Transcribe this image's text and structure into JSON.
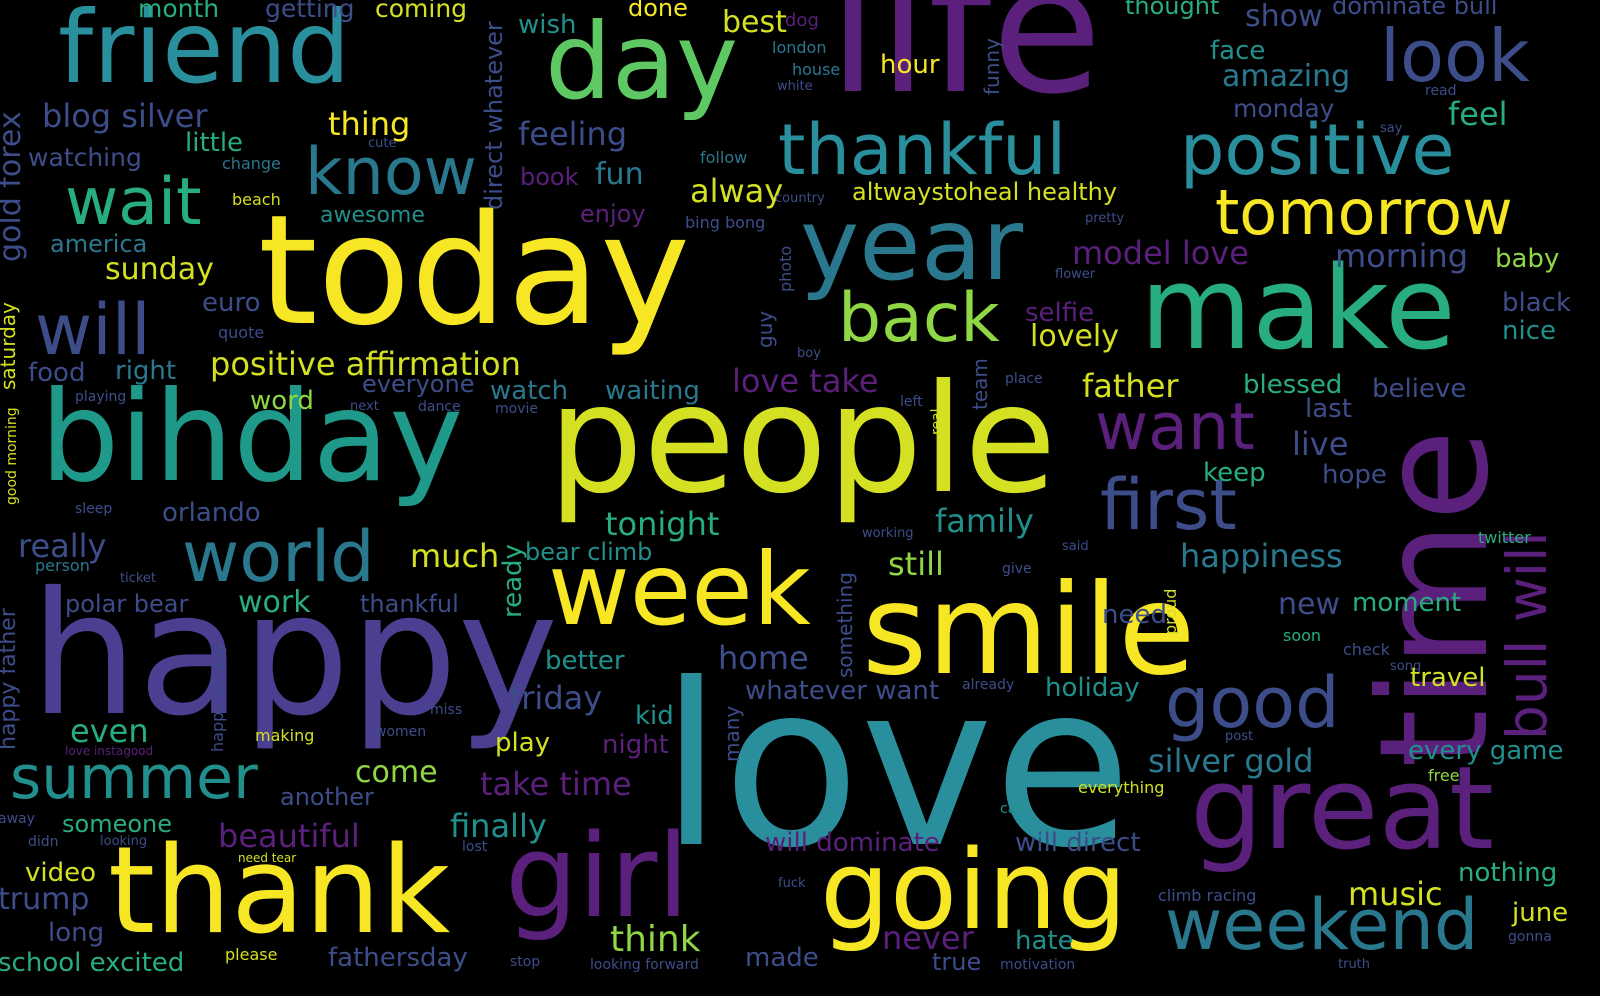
{
  "words": [
    {
      "t": "love",
      "c": "#2a8f9c"
    },
    {
      "t": "people",
      "c": "#d4e022"
    },
    {
      "t": "today",
      "c": "#f6e624"
    },
    {
      "t": "happy",
      "c": "#4a3f90"
    },
    {
      "t": "life",
      "c": "#5b1f7c"
    },
    {
      "t": "time",
      "c": "#5b1f7c"
    },
    {
      "t": "smile",
      "c": "#f6e624"
    },
    {
      "t": "bihday",
      "c": "#1f9a8a"
    },
    {
      "t": "make",
      "c": "#27ad81"
    },
    {
      "t": "thank",
      "c": "#f6e624"
    },
    {
      "t": "week",
      "c": "#f6e624"
    },
    {
      "t": "going",
      "c": "#f6e624"
    },
    {
      "t": "girl",
      "c": "#5b1f7c"
    },
    {
      "t": "great",
      "c": "#5b1f7c"
    },
    {
      "t": "day",
      "c": "#5ec962"
    },
    {
      "t": "friend",
      "c": "#2a8f9c"
    },
    {
      "t": "year",
      "c": "#2a788e"
    },
    {
      "t": "thankful",
      "c": "#2a8f9c"
    },
    {
      "t": "positive",
      "c": "#2a8f9c"
    },
    {
      "t": "world",
      "c": "#2a788e"
    },
    {
      "t": "good",
      "c": "#3d4d8a"
    },
    {
      "t": "weekend",
      "c": "#2a788e"
    },
    {
      "t": "first",
      "c": "#3d4d8a"
    },
    {
      "t": "tomorrow",
      "c": "#f6e624"
    },
    {
      "t": "look",
      "c": "#3d4d8a"
    },
    {
      "t": "summer",
      "c": "#21908d"
    },
    {
      "t": "know",
      "c": "#2a788e"
    },
    {
      "t": "wait",
      "c": "#27ad81"
    },
    {
      "t": "will",
      "c": "#3d4d8a"
    },
    {
      "t": "back",
      "c": "#8fd744"
    },
    {
      "t": "want",
      "c": "#5b1f7c"
    },
    {
      "t": "bull will",
      "c": "#5b1f7c"
    },
    {
      "t": "positive affirmation",
      "c": "#d4e022"
    },
    {
      "t": "blog silver",
      "c": "#3d4d8a"
    },
    {
      "t": "gold forex",
      "c": "#3d4d8a"
    },
    {
      "t": "month",
      "c": "#27ad81"
    },
    {
      "t": "getting",
      "c": "#3d4d8a"
    },
    {
      "t": "coming",
      "c": "#d4e022"
    },
    {
      "t": "done",
      "c": "#f6e624"
    },
    {
      "t": "best",
      "c": "#d4e022"
    },
    {
      "t": "dog",
      "c": "#5b1f7c"
    },
    {
      "t": "london",
      "c": "#2a788e"
    },
    {
      "t": "house",
      "c": "#2a788e"
    },
    {
      "t": "white",
      "c": "#3d4d8a"
    },
    {
      "t": "hour",
      "c": "#f6e624"
    },
    {
      "t": "funny",
      "c": "#3d4d8a"
    },
    {
      "t": "thought",
      "c": "#27ad81"
    },
    {
      "t": "show",
      "c": "#3d4d8a"
    },
    {
      "t": "dominate bull",
      "c": "#3d4d8a"
    },
    {
      "t": "face",
      "c": "#21908d"
    },
    {
      "t": "amazing",
      "c": "#2a788e"
    },
    {
      "t": "monday",
      "c": "#3d4d8a"
    },
    {
      "t": "read",
      "c": "#3d4d8a"
    },
    {
      "t": "feel",
      "c": "#27ad81"
    },
    {
      "t": "say",
      "c": "#3d4d8a"
    },
    {
      "t": "wish",
      "c": "#21908d"
    },
    {
      "t": "direct whatever",
      "c": "#3d4d8a"
    },
    {
      "t": "thing",
      "c": "#f6e624"
    },
    {
      "t": "little",
      "c": "#27ad81"
    },
    {
      "t": "cute",
      "c": "#3d4d8a"
    },
    {
      "t": "change",
      "c": "#2a788e"
    },
    {
      "t": "watching",
      "c": "#3d4d8a"
    },
    {
      "t": "feeling",
      "c": "#3d4d8a"
    },
    {
      "t": "follow",
      "c": "#2a788e"
    },
    {
      "t": "book",
      "c": "#5b1f7c"
    },
    {
      "t": "fun",
      "c": "#2a788e"
    },
    {
      "t": "alway",
      "c": "#d4e022"
    },
    {
      "t": "country",
      "c": "#3d4d8a"
    },
    {
      "t": "altwaystoheal healthy",
      "c": "#d4e022"
    },
    {
      "t": "beach",
      "c": "#d4e022"
    },
    {
      "t": "awesome",
      "c": "#21908d"
    },
    {
      "t": "enjoy",
      "c": "#5b1f7c"
    },
    {
      "t": "bing bong",
      "c": "#3d4d8a"
    },
    {
      "t": "pretty",
      "c": "#3d4d8a"
    },
    {
      "t": "america",
      "c": "#2a788e"
    },
    {
      "t": "sunday",
      "c": "#d4e022"
    },
    {
      "t": "photo",
      "c": "#3d4d8a"
    },
    {
      "t": "model love",
      "c": "#5b1f7c"
    },
    {
      "t": "morning",
      "c": "#3d4d8a"
    },
    {
      "t": "baby",
      "c": "#8fd744"
    },
    {
      "t": "flower",
      "c": "#3d4d8a"
    },
    {
      "t": "euro",
      "c": "#3d4d8a"
    },
    {
      "t": "black",
      "c": "#3d4d8a"
    },
    {
      "t": "nice",
      "c": "#21908d"
    },
    {
      "t": "selfie",
      "c": "#5b1f7c"
    },
    {
      "t": "lovely",
      "c": "#d4e022"
    },
    {
      "t": "quote",
      "c": "#3d4d8a"
    },
    {
      "t": "guy",
      "c": "#3d4d8a"
    },
    {
      "t": "boy",
      "c": "#3d4d8a"
    },
    {
      "t": "saturday",
      "c": "#d4e022"
    },
    {
      "t": "food",
      "c": "#3d4d8a"
    },
    {
      "t": "right",
      "c": "#2a788e"
    },
    {
      "t": "everyone",
      "c": "#3d4d8a"
    },
    {
      "t": "watch",
      "c": "#2a788e"
    },
    {
      "t": "waiting",
      "c": "#2a788e"
    },
    {
      "t": "love take",
      "c": "#5b1f7c"
    },
    {
      "t": "team",
      "c": "#3d4d8a"
    },
    {
      "t": "place",
      "c": "#3d4d8a"
    },
    {
      "t": "father",
      "c": "#d4e022"
    },
    {
      "t": "blessed",
      "c": "#27ad81"
    },
    {
      "t": "believe",
      "c": "#3d4d8a"
    },
    {
      "t": "playing",
      "c": "#3d4d8a"
    },
    {
      "t": "word",
      "c": "#8fd744"
    },
    {
      "t": "next",
      "c": "#3d4d8a"
    },
    {
      "t": "dance",
      "c": "#3d4d8a"
    },
    {
      "t": "movie",
      "c": "#3d4d8a"
    },
    {
      "t": "left",
      "c": "#3d4d8a"
    },
    {
      "t": "real",
      "c": "#d4e022"
    },
    {
      "t": "last",
      "c": "#3d4d8a"
    },
    {
      "t": "good morning",
      "c": "#d4e022"
    },
    {
      "t": "live",
      "c": "#3d4d8a"
    },
    {
      "t": "keep",
      "c": "#27ad81"
    },
    {
      "t": "hope",
      "c": "#3d4d8a"
    },
    {
      "t": "sleep",
      "c": "#3d4d8a"
    },
    {
      "t": "orlando",
      "c": "#3d4d8a"
    },
    {
      "t": "ready",
      "c": "#27ad81"
    },
    {
      "t": "tonight",
      "c": "#27ad81"
    },
    {
      "t": "family",
      "c": "#21908d"
    },
    {
      "t": "working",
      "c": "#3d4d8a"
    },
    {
      "t": "said",
      "c": "#3d4d8a"
    },
    {
      "t": "twitter",
      "c": "#27ad81"
    },
    {
      "t": "really",
      "c": "#3d4d8a"
    },
    {
      "t": "much",
      "c": "#d4e022"
    },
    {
      "t": "bear climb",
      "c": "#21908d"
    },
    {
      "t": "something",
      "c": "#3d4d8a"
    },
    {
      "t": "still",
      "c": "#8fd744"
    },
    {
      "t": "happiness",
      "c": "#2a788e"
    },
    {
      "t": "person",
      "c": "#2a788e"
    },
    {
      "t": "ticket",
      "c": "#3d4d8a"
    },
    {
      "t": "give",
      "c": "#3d4d8a"
    },
    {
      "t": "happy father",
      "c": "#3d4d8a"
    },
    {
      "t": "polar bear",
      "c": "#3d4d8a"
    },
    {
      "t": "work",
      "c": "#27ad81"
    },
    {
      "t": "thankful",
      "c": "#3d4d8a"
    },
    {
      "t": "need",
      "c": "#3d4d8a"
    },
    {
      "t": "proud",
      "c": "#d4e022"
    },
    {
      "t": "new",
      "c": "#3d4d8a"
    },
    {
      "t": "moment",
      "c": "#27ad81"
    },
    {
      "t": "soon",
      "c": "#27ad81"
    },
    {
      "t": "check",
      "c": "#3d4d8a"
    },
    {
      "t": "song",
      "c": "#3d4d8a"
    },
    {
      "t": "happy bihday",
      "c": "#3d4d8a"
    },
    {
      "t": "better",
      "c": "#21908d"
    },
    {
      "t": "home",
      "c": "#3d4d8a"
    },
    {
      "t": "friday",
      "c": "#3d4d8a"
    },
    {
      "t": "whatever want",
      "c": "#3d4d8a"
    },
    {
      "t": "already",
      "c": "#3d4d8a"
    },
    {
      "t": "holiday",
      "c": "#21908d"
    },
    {
      "t": "travel",
      "c": "#d4e022"
    },
    {
      "t": "kid",
      "c": "#21908d"
    },
    {
      "t": "many",
      "c": "#3d4d8a"
    },
    {
      "t": "miss",
      "c": "#3d4d8a"
    },
    {
      "t": "women",
      "c": "#3d4d8a"
    },
    {
      "t": "even",
      "c": "#27ad81"
    },
    {
      "t": "making",
      "c": "#d4e022"
    },
    {
      "t": "play",
      "c": "#d4e022"
    },
    {
      "t": "night",
      "c": "#5b1f7c"
    },
    {
      "t": "post",
      "c": "#3d4d8a"
    },
    {
      "t": "every game",
      "c": "#21908d"
    },
    {
      "t": "love instagood",
      "c": "#5b1f7c"
    },
    {
      "t": "come",
      "c": "#8fd744"
    },
    {
      "t": "take time",
      "c": "#5b1f7c"
    },
    {
      "t": "silver gold",
      "c": "#2a788e"
    },
    {
      "t": "free",
      "c": "#8fd744"
    },
    {
      "t": "another",
      "c": "#3d4d8a"
    },
    {
      "t": "everything",
      "c": "#d4e022"
    },
    {
      "t": "away",
      "c": "#3d4d8a"
    },
    {
      "t": "someone",
      "c": "#27ad81"
    },
    {
      "t": "call",
      "c": "#21908d"
    },
    {
      "t": "beautiful",
      "c": "#5b1f7c"
    },
    {
      "t": "finally",
      "c": "#21908d"
    },
    {
      "t": "will dominate",
      "c": "#5b1f7c"
    },
    {
      "t": "will direct",
      "c": "#3d4d8a"
    },
    {
      "t": "didn",
      "c": "#3d4d8a"
    },
    {
      "t": "looking",
      "c": "#3d4d8a"
    },
    {
      "t": "lost",
      "c": "#3d4d8a"
    },
    {
      "t": "need tear",
      "c": "#d4e022"
    },
    {
      "t": "video",
      "c": "#d4e022"
    },
    {
      "t": "fuck",
      "c": "#3d4d8a"
    },
    {
      "t": "nothing",
      "c": "#27ad81"
    },
    {
      "t": "trump",
      "c": "#3d4d8a"
    },
    {
      "t": "music",
      "c": "#d4e022"
    },
    {
      "t": "climb racing",
      "c": "#3d4d8a"
    },
    {
      "t": "june",
      "c": "#d4e022"
    },
    {
      "t": "gonna",
      "c": "#3d4d8a"
    },
    {
      "t": "long",
      "c": "#3d4d8a"
    },
    {
      "t": "think",
      "c": "#8fd744"
    },
    {
      "t": "never",
      "c": "#5b1f7c"
    },
    {
      "t": "hate",
      "c": "#21908d"
    },
    {
      "t": "school excited",
      "c": "#27ad81"
    },
    {
      "t": "please",
      "c": "#d4e022"
    },
    {
      "t": "fathersday",
      "c": "#3d4d8a"
    },
    {
      "t": "stop",
      "c": "#3d4d8a"
    },
    {
      "t": "looking forward",
      "c": "#3d4d8a"
    },
    {
      "t": "made",
      "c": "#3d4d8a"
    },
    {
      "t": "true",
      "c": "#3d4d8a"
    },
    {
      "t": "motivation",
      "c": "#3d4d8a"
    },
    {
      "t": "truth",
      "c": "#3d4d8a"
    }
  ]
}
